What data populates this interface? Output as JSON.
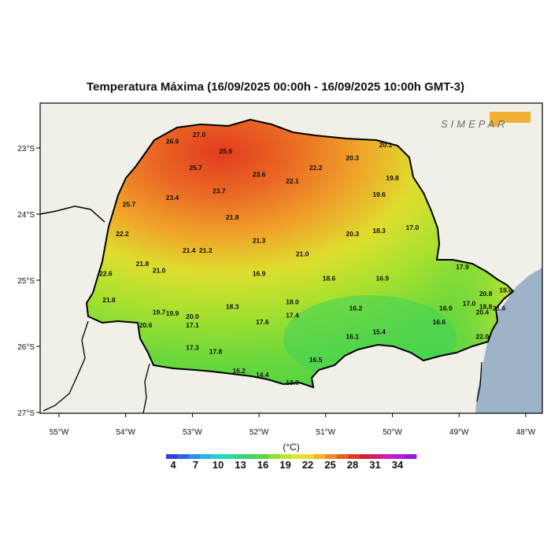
{
  "title": "Temperatura Máxima (16/09/2025 00:00h - 16/09/2025 10:00h GMT-3)",
  "logo": {
    "text": "SIMEPAR",
    "accent_color": "#f2b134"
  },
  "axes": {
    "x_ticks": [
      "55°W",
      "54°W",
      "53°W",
      "52°W",
      "51°W",
      "50°W",
      "49°W",
      "48°W"
    ],
    "y_ticks": [
      "23°S",
      "24°S",
      "25°S",
      "26°S",
      "27°S"
    ]
  },
  "colorbar": {
    "unit": "(°C)",
    "labels": [
      "4",
      "7",
      "10",
      "13",
      "16",
      "19",
      "22",
      "25",
      "28",
      "31",
      "34"
    ],
    "colors": [
      "#3b3bd9",
      "#2f64e6",
      "#2b90ea",
      "#26b6e6",
      "#22d2cf",
      "#26dca6",
      "#2ed77c",
      "#3fd45a",
      "#5ed63d",
      "#8ee02f",
      "#bde42e",
      "#dde62d",
      "#f1d72c",
      "#f4b22b",
      "#f08a28",
      "#ea6024",
      "#e33720",
      "#d81d3a",
      "#d41b7c",
      "#cf1ab8",
      "#b81ad9",
      "#9216e6"
    ]
  },
  "station_values": [
    {
      "v": "27.0",
      "lon": -52.9,
      "lat": -22.8
    },
    {
      "v": "26.9",
      "lon": -53.3,
      "lat": -22.9
    },
    {
      "v": "25.6",
      "lon": -52.5,
      "lat": -23.05
    },
    {
      "v": "25.7",
      "lon": -52.95,
      "lat": -23.3
    },
    {
      "v": "23.6",
      "lon": -52.0,
      "lat": -23.4
    },
    {
      "v": "22.1",
      "lon": -51.5,
      "lat": -23.5
    },
    {
      "v": "22.2",
      "lon": -51.15,
      "lat": -23.3
    },
    {
      "v": "20.3",
      "lon": -50.6,
      "lat": -23.15
    },
    {
      "v": "20.1",
      "lon": -50.1,
      "lat": -22.95
    },
    {
      "v": "19.8",
      "lon": -50.0,
      "lat": -23.45
    },
    {
      "v": "23.7",
      "lon": -52.6,
      "lat": -23.65
    },
    {
      "v": "23.4",
      "lon": -53.3,
      "lat": -23.75
    },
    {
      "v": "25.7",
      "lon": -53.95,
      "lat": -23.85
    },
    {
      "v": "19.6",
      "lon": -50.2,
      "lat": -23.7
    },
    {
      "v": "21.8",
      "lon": -52.4,
      "lat": -24.05
    },
    {
      "v": "17.0",
      "lon": -49.7,
      "lat": -24.2
    },
    {
      "v": "18.3",
      "lon": -50.2,
      "lat": -24.25
    },
    {
      "v": "20.3",
      "lon": -50.6,
      "lat": -24.3
    },
    {
      "v": "22.2",
      "lon": -54.05,
      "lat": -24.3
    },
    {
      "v": "21.3",
      "lon": -52.0,
      "lat": -24.4
    },
    {
      "v": "21.4",
      "lon": -53.05,
      "lat": -24.55
    },
    {
      "v": "21.2",
      "lon": -52.8,
      "lat": -24.55
    },
    {
      "v": "21.0",
      "lon": -51.35,
      "lat": -24.6
    },
    {
      "v": "21.8",
      "lon": -53.75,
      "lat": -24.75
    },
    {
      "v": "21.0",
      "lon": -53.5,
      "lat": -24.85
    },
    {
      "v": "17.9",
      "lon": -48.95,
      "lat": -24.8
    },
    {
      "v": "22.6",
      "lon": -54.3,
      "lat": -24.9
    },
    {
      "v": "16.9",
      "lon": -52.0,
      "lat": -24.9
    },
    {
      "v": "18.6",
      "lon": -50.95,
      "lat": -24.97
    },
    {
      "v": "16.9",
      "lon": -50.15,
      "lat": -24.97
    },
    {
      "v": "20.8",
      "lon": -48.6,
      "lat": -25.2
    },
    {
      "v": "19.0",
      "lon": -48.3,
      "lat": -25.15
    },
    {
      "v": "21.8",
      "lon": -54.25,
      "lat": -25.3
    },
    {
      "v": "18.0",
      "lon": -51.5,
      "lat": -25.33
    },
    {
      "v": "18.3",
      "lon": -52.4,
      "lat": -25.4
    },
    {
      "v": "17.0",
      "lon": -48.85,
      "lat": -25.35
    },
    {
      "v": "18.8",
      "lon": -48.6,
      "lat": -25.4
    },
    {
      "v": "21.6",
      "lon": -48.4,
      "lat": -25.42
    },
    {
      "v": "16.9",
      "lon": -49.2,
      "lat": -25.42
    },
    {
      "v": "16.2",
      "lon": -50.55,
      "lat": -25.42
    },
    {
      "v": "20.4",
      "lon": -48.65,
      "lat": -25.48
    },
    {
      "v": "19.7",
      "lon": -53.5,
      "lat": -25.48
    },
    {
      "v": "19.9",
      "lon": -53.3,
      "lat": -25.5
    },
    {
      "v": "20.0",
      "lon": -53.0,
      "lat": -25.55
    },
    {
      "v": "17.4",
      "lon": -51.5,
      "lat": -25.53
    },
    {
      "v": "17.6",
      "lon": -51.95,
      "lat": -25.63
    },
    {
      "v": "16.6",
      "lon": -49.3,
      "lat": -25.63
    },
    {
      "v": "20.6",
      "lon": -53.7,
      "lat": -25.68
    },
    {
      "v": "17.1",
      "lon": -53.0,
      "lat": -25.68
    },
    {
      "v": "15.4",
      "lon": -50.2,
      "lat": -25.78
    },
    {
      "v": "16.1",
      "lon": -50.6,
      "lat": -25.85
    },
    {
      "v": "22.0",
      "lon": -48.65,
      "lat": -25.85
    },
    {
      "v": "17.3",
      "lon": -53.0,
      "lat": -26.02
    },
    {
      "v": "17.8",
      "lon": -52.65,
      "lat": -26.08
    },
    {
      "v": "16.5",
      "lon": -51.15,
      "lat": -26.2
    },
    {
      "v": "16.2",
      "lon": -52.3,
      "lat": -26.37
    },
    {
      "v": "14.4",
      "lon": -51.95,
      "lat": -26.43
    },
    {
      "v": "13.6",
      "lon": -51.5,
      "lat": -26.55
    }
  ]
}
